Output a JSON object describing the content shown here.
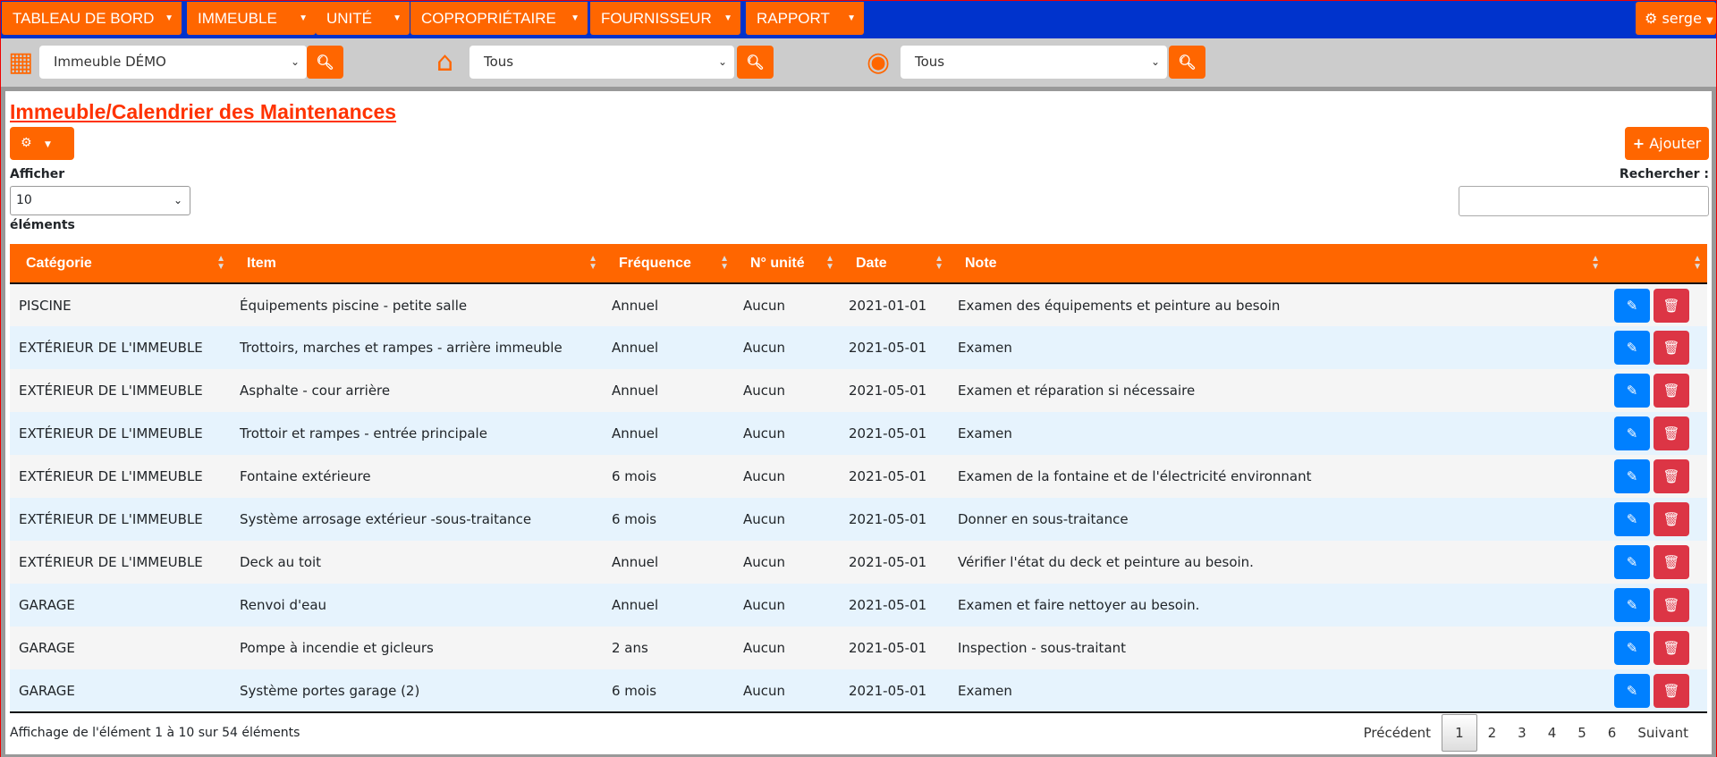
{
  "nav": {
    "items": [
      "TABLEAU DE BORD",
      "IMMEUBLE",
      "UNITÉ",
      "COPROPRIÉTAIRE",
      "FOURNISSEUR",
      "RAPPORT"
    ],
    "user": "serge"
  },
  "filters": {
    "building": "Immeuble DÉMO",
    "unit": "Tous",
    "owner": "Tous"
  },
  "page": {
    "title": "Immeuble/Calendrier des Maintenances",
    "add_label": "Ajouter",
    "show_label": "Afficher",
    "length": "10",
    "entries_label": "éléments",
    "search_label": "Rechercher :",
    "search_value": ""
  },
  "table": {
    "columns": [
      "Catégorie",
      "Item",
      "Fréquence",
      "N° unité",
      "Date",
      "Note",
      ""
    ],
    "rows": [
      [
        "PISCINE",
        "Équipements piscine - petite salle",
        "Annuel",
        "Aucun",
        "2021-01-01",
        "Examen des équipements et peinture au besoin"
      ],
      [
        "EXTÉRIEUR DE L'IMMEUBLE",
        "Trottoirs, marches et rampes - arrière immeuble",
        "Annuel",
        "Aucun",
        "2021-05-01",
        "Examen"
      ],
      [
        "EXTÉRIEUR DE L'IMMEUBLE",
        "Asphalte - cour arrière",
        "Annuel",
        "Aucun",
        "2021-05-01",
        "Examen et réparation si nécessaire"
      ],
      [
        "EXTÉRIEUR DE L'IMMEUBLE",
        "Trottoir et rampes - entrée principale",
        "Annuel",
        "Aucun",
        "2021-05-01",
        "Examen"
      ],
      [
        "EXTÉRIEUR DE L'IMMEUBLE",
        "Fontaine extérieure",
        "6 mois",
        "Aucun",
        "2021-05-01",
        "Examen de la fontaine et de l'électricité environnant"
      ],
      [
        "EXTÉRIEUR DE L'IMMEUBLE",
        "Système arrosage extérieur -sous-traitance",
        "6 mois",
        "Aucun",
        "2021-05-01",
        "Donner en sous-traitance"
      ],
      [
        "EXTÉRIEUR DE L'IMMEUBLE",
        "Deck au toit",
        "Annuel",
        "Aucun",
        "2021-05-01",
        "Vérifier l'état du deck et peinture au besoin."
      ],
      [
        "GARAGE",
        "Renvoi d'eau",
        "Annuel",
        "Aucun",
        "2021-05-01",
        "Examen et faire nettoyer au besoin."
      ],
      [
        "GARAGE",
        "Pompe à incendie et gicleurs",
        "2 ans",
        "Aucun",
        "2021-05-01",
        "Inspection - sous-traitant"
      ],
      [
        "GARAGE",
        "Système portes garage (2)",
        "6 mois",
        "Aucun",
        "2021-05-01",
        "Examen"
      ]
    ]
  },
  "footer": {
    "info": "Affichage de l'élément 1 à 10 sur 54 éléments",
    "prev": "Précédent",
    "pages": [
      "1",
      "2",
      "3",
      "4",
      "5",
      "6"
    ],
    "next": "Suivant",
    "current": "1"
  },
  "colors": {
    "accent": "#ff6600",
    "nav": "#0033cc",
    "edit": "#0080ff",
    "delete": "#dc3545"
  }
}
